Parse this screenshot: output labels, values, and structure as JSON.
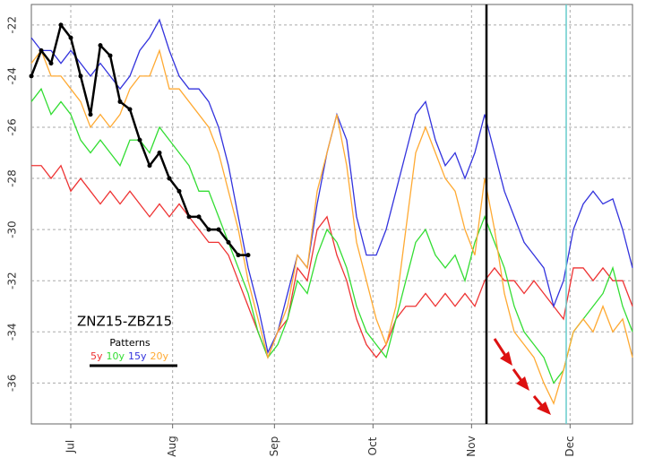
{
  "chart_data": {
    "type": "line",
    "annotation": "ZNZ15-ZBZ15",
    "legend_title": "Patterns",
    "x": [
      0,
      3,
      6,
      9,
      12,
      15,
      18,
      21,
      24,
      27,
      30,
      33,
      36,
      39,
      42,
      45,
      48,
      51,
      54,
      57,
      60,
      63,
      66,
      69,
      72,
      75,
      78,
      81,
      84,
      87,
      90,
      93,
      96,
      99,
      102,
      105,
      108,
      111,
      114,
      117,
      120,
      123,
      126,
      129,
      132,
      135,
      138,
      141,
      144,
      147,
      150,
      153,
      156,
      159,
      162,
      165,
      168,
      171,
      174,
      177,
      180,
      183
    ],
    "xlim": [
      0,
      183
    ],
    "xticks": [
      {
        "value": 12,
        "label": "Jul"
      },
      {
        "value": 43,
        "label": "Aug"
      },
      {
        "value": 74,
        "label": "Sep"
      },
      {
        "value": 104,
        "label": "Oct"
      },
      {
        "value": 134,
        "label": "Nov"
      },
      {
        "value": 164,
        "label": "Dec"
      }
    ],
    "ylim": [
      -37.6,
      -21.2
    ],
    "yticks": [
      -22,
      -24,
      -26,
      -28,
      -30,
      -32,
      -34,
      -36
    ],
    "grid": true,
    "series": [
      {
        "name": "5y",
        "color": "#ee3333",
        "values": [
          -27.5,
          -27.5,
          -28,
          -27.5,
          -28.5,
          -28,
          -28.5,
          -29,
          -28.5,
          -29,
          -28.5,
          -29,
          -29.5,
          -29,
          -29.5,
          -29,
          -29.5,
          -30,
          -30.5,
          -30.5,
          -31,
          -32,
          -33,
          -34,
          -35,
          -34,
          -33.5,
          -31.5,
          -32,
          -30,
          -29.5,
          -31,
          -32,
          -33.5,
          -34.5,
          -35,
          -34.5,
          -33.5,
          -33,
          -33,
          -32.5,
          -33,
          -32.5,
          -33,
          -32.5,
          -33,
          -32,
          -31.5,
          -32,
          -32,
          -32.5,
          -32,
          -32.5,
          -33,
          -33.5,
          -31.5,
          -31.5,
          -32,
          -31.5,
          -32,
          -32,
          -33
        ]
      },
      {
        "name": "10y",
        "color": "#33dd33",
        "values": [
          -25,
          -24.5,
          -25.5,
          -25,
          -25.5,
          -26.5,
          -27,
          -26.5,
          -27,
          -27.5,
          -26.5,
          -26.5,
          -27,
          -26,
          -26.5,
          -27,
          -27.5,
          -28.5,
          -28.5,
          -29.5,
          -30.5,
          -31.5,
          -32.5,
          -34,
          -35,
          -34.5,
          -33.5,
          -32,
          -32.5,
          -31,
          -30,
          -30.5,
          -31.5,
          -33,
          -34,
          -34.5,
          -35,
          -33.5,
          -32,
          -30.5,
          -30,
          -31,
          -31.5,
          -31,
          -32,
          -30.5,
          -29.5,
          -30.5,
          -31.5,
          -33,
          -34,
          -34.5,
          -35,
          -36,
          -35.5,
          -34,
          -33.5,
          -33,
          -32.5,
          -31.5,
          -33,
          -34
        ]
      },
      {
        "name": "15y",
        "color": "#3333dd",
        "values": [
          -22.5,
          -23,
          -23,
          -23.5,
          -23,
          -23.5,
          -24,
          -23.5,
          -24,
          -24.5,
          -24,
          -23,
          -22.5,
          -21.8,
          -23,
          -24,
          -24.5,
          -24.5,
          -25,
          -26,
          -27.5,
          -29.5,
          -31.5,
          -33,
          -34.8,
          -34,
          -32.5,
          -31,
          -31.5,
          -29,
          -27,
          -25.5,
          -26.5,
          -29.5,
          -31,
          -31,
          -30,
          -28.5,
          -27,
          -25.5,
          -25,
          -26.5,
          -27.5,
          -27,
          -28,
          -27,
          -25.5,
          -27,
          -28.5,
          -29.5,
          -30.5,
          -31,
          -31.5,
          -33,
          -32,
          -30,
          -29,
          -28.5,
          -29,
          -28.8,
          -30,
          -31.5
        ]
      },
      {
        "name": "20y",
        "color": "#ffaa33",
        "values": [
          -23.5,
          -23,
          -24,
          -24,
          -24.5,
          -25,
          -26,
          -25.5,
          -26,
          -25.5,
          -24.5,
          -24,
          -24,
          -23,
          -24.5,
          -24.5,
          -25,
          -25.5,
          -26,
          -27,
          -28.5,
          -30,
          -32,
          -33.5,
          -35,
          -34,
          -33,
          -31,
          -31.5,
          -28.5,
          -27,
          -25.5,
          -27.5,
          -30.5,
          -32,
          -33.5,
          -34.5,
          -33,
          -30,
          -27,
          -26,
          -27,
          -28,
          -28.5,
          -30,
          -31,
          -28,
          -30,
          -32.5,
          -34,
          -34.5,
          -35,
          -36,
          -36.8,
          -35.5,
          -34,
          -33.5,
          -34,
          -33,
          -34,
          -33.5,
          -35
        ]
      },
      {
        "color": "#000000",
        "markers": true,
        "values": [
          -24,
          -23,
          -23.5,
          -22,
          -22.5,
          -24,
          -25.5,
          -22.8,
          -23.2,
          -25,
          -25.3,
          -26.5,
          -27.5,
          -27,
          -28,
          -28.5,
          -29.5,
          -29.5,
          -30,
          -30,
          -30.5,
          -31,
          -31,
          null,
          null,
          null,
          null,
          null,
          null,
          null,
          null,
          null,
          null,
          null,
          null,
          null,
          null,
          null,
          null,
          null,
          null,
          null,
          null,
          null,
          null,
          null,
          null,
          null,
          null,
          null,
          null,
          null,
          null,
          null,
          null,
          null,
          null,
          null,
          null,
          null,
          null,
          null
        ]
      }
    ]
  }
}
